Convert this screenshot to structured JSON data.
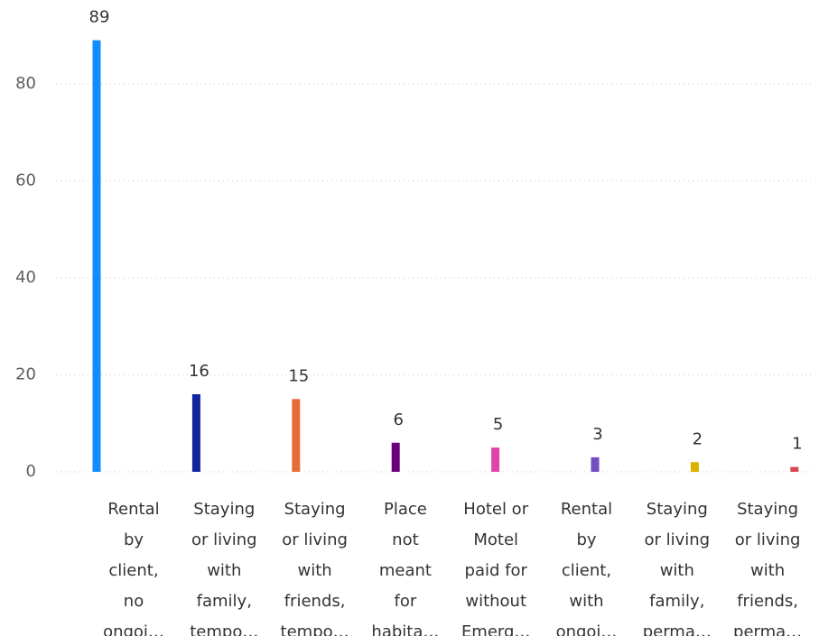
{
  "chart_data": {
    "type": "bar",
    "categories": [
      [
        "Rental",
        "by",
        "client,",
        "no",
        "ongoi…"
      ],
      [
        "Staying",
        "or living",
        "with",
        "family,",
        "tempo…"
      ],
      [
        "Staying",
        "or living",
        "with",
        "friends,",
        "tempo…"
      ],
      [
        "Place",
        "not",
        "meant",
        "for",
        "habita…"
      ],
      [
        "Hotel or",
        "Motel",
        "paid for",
        "without",
        "Emerg…"
      ],
      [
        "Rental",
        "by",
        "client,",
        "with",
        "ongoi…"
      ],
      [
        "Staying",
        "or living",
        "with",
        "family,",
        "perma…"
      ],
      [
        "Staying",
        "or living",
        "with",
        "friends,",
        "perma…"
      ]
    ],
    "values": [
      89,
      16,
      15,
      6,
      5,
      3,
      2,
      1
    ],
    "colors": [
      "#118DFF",
      "#12239E",
      "#E66C37",
      "#6B007B",
      "#E044A7",
      "#744EC2",
      "#D9B300",
      "#D64550"
    ],
    "ylim": [
      0,
      90
    ],
    "yticks": [
      0,
      20,
      40,
      60,
      80
    ],
    "grid": true
  }
}
